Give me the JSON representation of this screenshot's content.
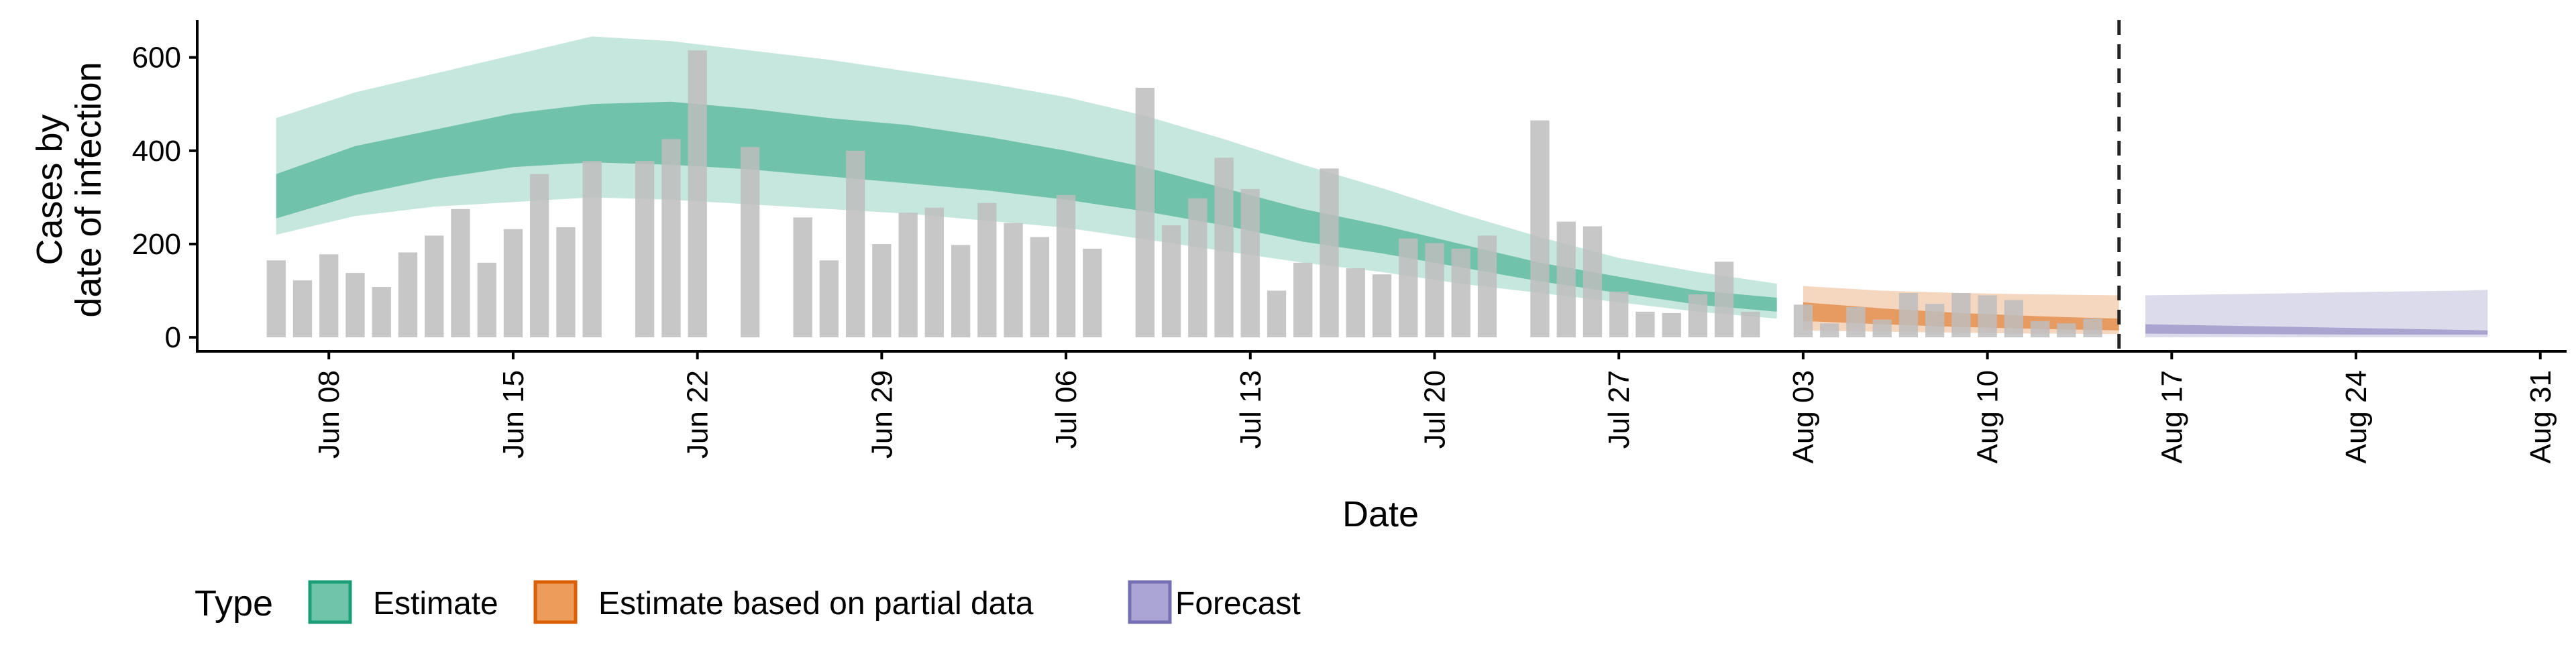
{
  "chart_data": {
    "type": "bar",
    "title": "",
    "xlabel": "Date",
    "ylabel_lines": [
      "Cases by",
      "date of infection"
    ],
    "ylim": [
      -30,
      680
    ],
    "y_ticks": [
      0,
      200,
      400,
      600
    ],
    "x_range": [
      "2020-06-03",
      "2020-09-01"
    ],
    "x_ticks": [
      {
        "date": "2020-06-08",
        "label": "Jun 08"
      },
      {
        "date": "2020-06-15",
        "label": "Jun 15"
      },
      {
        "date": "2020-06-22",
        "label": "Jun 22"
      },
      {
        "date": "2020-06-29",
        "label": "Jun 29"
      },
      {
        "date": "2020-07-06",
        "label": "Jul 06"
      },
      {
        "date": "2020-07-13",
        "label": "Jul 13"
      },
      {
        "date": "2020-07-20",
        "label": "Jul 20"
      },
      {
        "date": "2020-07-27",
        "label": "Jul 27"
      },
      {
        "date": "2020-08-03",
        "label": "Aug 03"
      },
      {
        "date": "2020-08-10",
        "label": "Aug 10"
      },
      {
        "date": "2020-08-17",
        "label": "Aug 17"
      },
      {
        "date": "2020-08-24",
        "label": "Aug 24"
      },
      {
        "date": "2020-08-31",
        "label": "Aug 31"
      }
    ],
    "forecast_start": "2020-08-15",
    "grid": false,
    "legend": {
      "title": "Type",
      "placement": "bottom",
      "entries": [
        {
          "label": "Estimate",
          "fill": "#70c4a9",
          "stroke": "#1b9e77"
        },
        {
          "label": "Estimate based on partial data",
          "fill": "#ee9c5c",
          "stroke": "#d95f02"
        },
        {
          "label": "Forecast",
          "fill": "#aaa5d3",
          "stroke": "#7570b3"
        }
      ]
    },
    "colors": {
      "bar": "#bdbdbd",
      "estimate": "#1b9e77",
      "partial": "#d95f02",
      "forecast": "#7570b3",
      "vline": "#222222"
    },
    "reported_cases": {
      "start_date": "2020-06-06",
      "values": [
        165,
        122,
        178,
        138,
        108,
        182,
        218,
        275,
        160,
        232,
        350,
        236,
        378,
        0,
        378,
        425,
        615,
        0,
        408,
        0,
        257,
        165,
        400,
        200,
        267,
        278,
        198,
        288,
        245,
        215,
        305,
        190,
        0,
        535,
        240,
        298,
        385,
        318,
        100,
        160,
        362,
        148,
        135,
        212,
        202,
        190,
        218,
        0,
        465,
        248,
        238,
        98,
        55,
        52,
        92,
        162,
        55,
        0,
        70,
        30,
        65,
        38,
        95,
        72,
        95,
        90,
        80,
        35,
        30,
        40
      ]
    },
    "series": [
      {
        "name": "Estimate",
        "x": [
          "2020-06-06",
          "2020-06-09",
          "2020-06-12",
          "2020-06-15",
          "2020-06-18",
          "2020-06-21",
          "2020-06-24",
          "2020-06-27",
          "2020-06-30",
          "2020-07-03",
          "2020-07-06",
          "2020-07-09",
          "2020-07-12",
          "2020-07-15",
          "2020-07-18",
          "2020-07-21",
          "2020-07-24",
          "2020-07-27",
          "2020-07-30",
          "2020-08-02"
        ],
        "lower_90": [
          220,
          260,
          280,
          290,
          300,
          295,
          285,
          275,
          265,
          250,
          235,
          210,
          185,
          160,
          140,
          115,
          95,
          75,
          55,
          40
        ],
        "upper_90": [
          470,
          525,
          565,
          605,
          645,
          635,
          615,
          595,
          570,
          545,
          515,
          475,
          425,
          370,
          320,
          265,
          215,
          170,
          140,
          115
        ],
        "lower_50": [
          255,
          305,
          340,
          365,
          375,
          370,
          360,
          345,
          330,
          315,
          295,
          270,
          240,
          205,
          180,
          150,
          120,
          95,
          70,
          55
        ],
        "upper_50": [
          350,
          410,
          445,
          480,
          500,
          505,
          490,
          470,
          455,
          430,
          400,
          365,
          320,
          275,
          240,
          200,
          160,
          130,
          100,
          85
        ]
      },
      {
        "name": "Estimate based on partial data",
        "x": [
          "2020-08-03",
          "2020-08-06",
          "2020-08-09",
          "2020-08-12",
          "2020-08-15"
        ],
        "lower_90": [
          15,
          12,
          10,
          8,
          7
        ],
        "upper_90": [
          110,
          100,
          95,
          92,
          90
        ],
        "lower_50": [
          35,
          28,
          22,
          18,
          15
        ],
        "upper_50": [
          75,
          62,
          52,
          45,
          40
        ]
      },
      {
        "name": "Forecast",
        "x": [
          "2020-08-16",
          "2020-08-20",
          "2020-08-24",
          "2020-08-28",
          "2020-08-29"
        ],
        "lower_90": [
          0,
          0,
          0,
          0,
          0
        ],
        "upper_90": [
          90,
          93,
          97,
          100,
          102
        ],
        "lower_50": [
          8,
          7,
          6,
          6,
          6
        ],
        "upper_50": [
          28,
          24,
          20,
          16,
          15
        ]
      }
    ]
  }
}
